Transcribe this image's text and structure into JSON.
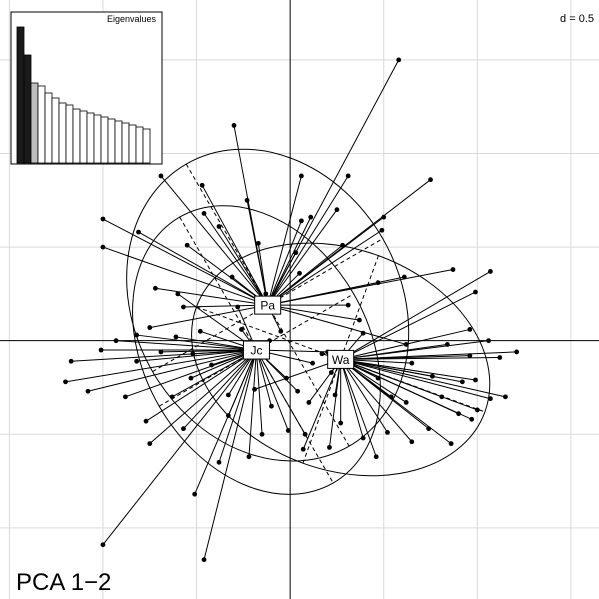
{
  "chart_data": {
    "type": "scatter",
    "title": "PCA 1−2",
    "scale_label": "d = 0.5",
    "grid_step": 0.5,
    "xlim": [
      -1.55,
      1.65
    ],
    "ylim": [
      -1.38,
      1.82
    ],
    "groups": [
      {
        "name": "Pa",
        "center": [
          -0.12,
          0.19
        ],
        "ellipse": {
          "a": 0.71,
          "b": 0.87,
          "angle_deg": 30
        },
        "points": [
          [
            0.58,
            1.5
          ],
          [
            -0.3,
            1.15
          ],
          [
            -0.69,
            0.88
          ],
          [
            -0.47,
            0.83
          ],
          [
            -0.23,
            0.75
          ],
          [
            0.06,
            0.88
          ],
          [
            0.31,
            0.88
          ],
          [
            0.75,
            0.86
          ],
          [
            0.11,
            0.66
          ],
          [
            0.5,
            0.66
          ],
          [
            -0.46,
            0.68
          ],
          [
            -1.0,
            0.65
          ],
          [
            -0.81,
            0.58
          ],
          [
            -0.55,
            0.51
          ],
          [
            0.03,
            0.47
          ],
          [
            0.49,
            0.59
          ],
          [
            -1.0,
            0.5
          ],
          [
            -0.31,
            0.34
          ],
          [
            0.28,
            0.51
          ],
          [
            0.05,
            0.36
          ],
          [
            0.87,
            0.38
          ],
          [
            -0.13,
            0.25
          ],
          [
            0.31,
            0.19
          ],
          [
            0.37,
            0.11
          ],
          [
            -0.05,
            0.05
          ],
          [
            -0.75,
            0.07
          ],
          [
            -0.57,
            0.18
          ],
          [
            0.47,
            0.31
          ],
          [
            0.61,
            0.34
          ],
          [
            0.62,
            -0.02
          ],
          [
            0.06,
            0.64
          ],
          [
            -0.17,
            0.52
          ],
          [
            -0.38,
            0.61
          ],
          [
            -0.72,
            0.28
          ],
          [
            0.25,
            0.7
          ]
        ]
      },
      {
        "name": "Jc",
        "center": [
          -0.18,
          -0.05
        ],
        "ellipse": {
          "a": 0.6,
          "b": 0.82,
          "angle_deg": 30
        },
        "points": [
          [
            -0.46,
            -1.17
          ],
          [
            -1.0,
            -1.09
          ],
          [
            -0.51,
            -0.82
          ],
          [
            -0.22,
            -0.62
          ],
          [
            -0.15,
            -0.5
          ],
          [
            -0.33,
            -0.4
          ],
          [
            -0.75,
            -0.55
          ],
          [
            -0.77,
            -0.43
          ],
          [
            -0.88,
            -0.3
          ],
          [
            -1.08,
            -0.27
          ],
          [
            -1.2,
            -0.22
          ],
          [
            -1.17,
            -0.11
          ],
          [
            -0.93,
            0.0
          ],
          [
            -0.82,
            -0.11
          ],
          [
            -0.61,
            0.02
          ],
          [
            -0.52,
            -0.07
          ],
          [
            -0.48,
            0.05
          ],
          [
            -0.26,
            0.06
          ],
          [
            -0.11,
            0.0
          ],
          [
            -0.02,
            -0.2
          ],
          [
            -0.1,
            -0.35
          ],
          [
            0.04,
            -0.27
          ],
          [
            0.12,
            -0.12
          ],
          [
            0.2,
            -0.06
          ],
          [
            -0.01,
            -0.48
          ],
          [
            -0.33,
            -0.29
          ],
          [
            -0.53,
            -0.2
          ],
          [
            -0.63,
            -0.3
          ],
          [
            -1.01,
            -0.05
          ],
          [
            -0.38,
            -0.65
          ],
          [
            -0.42,
            -0.13
          ],
          [
            -0.69,
            -0.06
          ],
          [
            -0.82,
            0.03
          ],
          [
            -0.57,
            -0.47
          ],
          [
            0.08,
            -0.5
          ],
          [
            -0.6,
            0.25
          ],
          [
            -0.28,
            0.18
          ]
        ]
      },
      {
        "name": "Wa",
        "center": [
          0.27,
          -0.1
        ],
        "ellipse": {
          "a": 0.82,
          "b": 0.59,
          "angle_deg": -20
        },
        "points": [
          [
            1.07,
            0.37
          ],
          [
            0.99,
            0.26
          ],
          [
            0.96,
            0.06
          ],
          [
            0.84,
            -0.02
          ],
          [
            0.96,
            -0.08
          ],
          [
            1.12,
            -0.09
          ],
          [
            1.21,
            -0.06
          ],
          [
            0.92,
            -0.22
          ],
          [
            0.99,
            -0.21
          ],
          [
            1.15,
            -0.3
          ],
          [
            1.07,
            -0.31
          ],
          [
            1.0,
            -0.37
          ],
          [
            0.9,
            -0.39
          ],
          [
            0.74,
            -0.47
          ],
          [
            0.52,
            -0.49
          ],
          [
            0.39,
            -0.52
          ],
          [
            0.21,
            -0.57
          ],
          [
            0.07,
            -0.58
          ],
          [
            0.27,
            -0.44
          ],
          [
            0.54,
            -0.3
          ],
          [
            0.47,
            -0.2
          ],
          [
            0.34,
            -0.12
          ],
          [
            0.17,
            -0.07
          ],
          [
            0.39,
            0.04
          ],
          [
            0.86,
            -0.55
          ],
          [
            0.62,
            -0.33
          ],
          [
            0.24,
            -0.29
          ],
          [
            -0.19,
            -0.26
          ],
          [
            0.65,
            -0.12
          ],
          [
            0.81,
            -0.3
          ],
          [
            0.76,
            -0.19
          ],
          [
            0.97,
            -0.42
          ],
          [
            0.46,
            -0.62
          ],
          [
            0.65,
            -0.54
          ],
          [
            0.1,
            -0.33
          ],
          [
            0.22,
            -0.17
          ],
          [
            1.06,
            0.0
          ]
        ]
      }
    ],
    "eigenvalues": {
      "title": "Eigenvalues",
      "values": [
        6.8,
        5.4,
        4.0,
        3.85,
        3.5,
        3.25,
        3.0,
        2.9,
        2.7,
        2.6,
        2.5,
        2.4,
        2.3,
        2.2,
        2.1,
        2.0,
        1.9,
        1.8,
        1.7
      ],
      "highlighted": 3
    }
  }
}
